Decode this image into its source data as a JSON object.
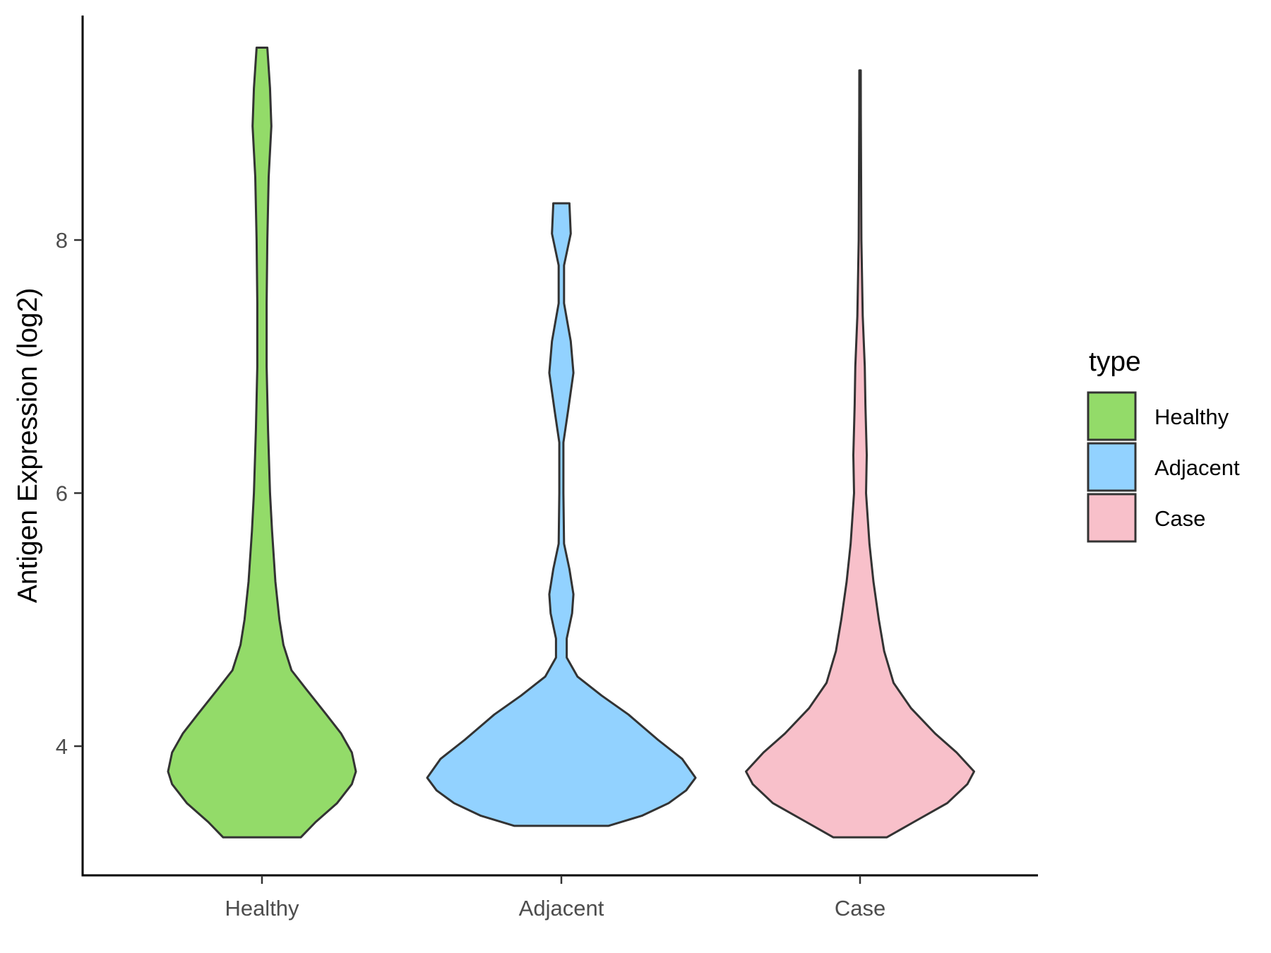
{
  "chart_data": {
    "type": "violin",
    "title": "",
    "xlabel": "",
    "ylabel": "Antigen Expression (log2)",
    "categories": [
      "Healthy",
      "Adjacent",
      "Case"
    ],
    "yticks": [
      4,
      6,
      8
    ],
    "ylim": [
      3.0,
      9.8
    ],
    "grid": false,
    "legend": {
      "title": "type",
      "placement": "right",
      "entries": [
        {
          "label": "Healthy",
          "color": "#93DB69"
        },
        {
          "label": "Adjacent",
          "color": "#92D2FF"
        },
        {
          "label": "Case",
          "color": "#F8C0CA"
        }
      ]
    },
    "series": [
      {
        "name": "Healthy",
        "color": "#93DB69",
        "ymin": 3.28,
        "ymax": 9.52,
        "density": [
          [
            3.28,
            0.29
          ],
          [
            3.4,
            0.4
          ],
          [
            3.55,
            0.56
          ],
          [
            3.7,
            0.67
          ],
          [
            3.8,
            0.7
          ],
          [
            3.95,
            0.67
          ],
          [
            4.1,
            0.59
          ],
          [
            4.25,
            0.48
          ],
          [
            4.45,
            0.33
          ],
          [
            4.6,
            0.22
          ],
          [
            4.8,
            0.16
          ],
          [
            5.0,
            0.13
          ],
          [
            5.3,
            0.1
          ],
          [
            5.7,
            0.075
          ],
          [
            6.0,
            0.06
          ],
          [
            6.5,
            0.045
          ],
          [
            7.0,
            0.035
          ],
          [
            7.5,
            0.035
          ],
          [
            8.0,
            0.04
          ],
          [
            8.5,
            0.05
          ],
          [
            8.9,
            0.07
          ],
          [
            9.2,
            0.06
          ],
          [
            9.52,
            0.04
          ]
        ]
      },
      {
        "name": "Adjacent",
        "color": "#92D2FF",
        "ymin": 3.37,
        "ymax": 8.29,
        "density": [
          [
            3.37,
            0.35
          ],
          [
            3.45,
            0.6
          ],
          [
            3.55,
            0.8
          ],
          [
            3.65,
            0.93
          ],
          [
            3.75,
            1.0
          ],
          [
            3.9,
            0.9
          ],
          [
            4.05,
            0.72
          ],
          [
            4.25,
            0.5
          ],
          [
            4.4,
            0.3
          ],
          [
            4.55,
            0.12
          ],
          [
            4.7,
            0.04
          ],
          [
            4.85,
            0.04
          ],
          [
            5.05,
            0.08
          ],
          [
            5.2,
            0.09
          ],
          [
            5.4,
            0.06
          ],
          [
            5.6,
            0.02
          ],
          [
            6.0,
            0.015
          ],
          [
            6.4,
            0.015
          ],
          [
            6.65,
            0.05
          ],
          [
            6.95,
            0.09
          ],
          [
            7.2,
            0.07
          ],
          [
            7.5,
            0.02
          ],
          [
            7.8,
            0.02
          ],
          [
            8.05,
            0.07
          ],
          [
            8.29,
            0.06
          ]
        ]
      },
      {
        "name": "Case",
        "color": "#F8C0CA",
        "ymin": 3.28,
        "ymax": 9.34,
        "density": [
          [
            3.28,
            0.2
          ],
          [
            3.4,
            0.4
          ],
          [
            3.55,
            0.65
          ],
          [
            3.7,
            0.8
          ],
          [
            3.8,
            0.85
          ],
          [
            3.95,
            0.72
          ],
          [
            4.1,
            0.56
          ],
          [
            4.3,
            0.38
          ],
          [
            4.5,
            0.25
          ],
          [
            4.75,
            0.18
          ],
          [
            5.0,
            0.14
          ],
          [
            5.3,
            0.1
          ],
          [
            5.6,
            0.07
          ],
          [
            6.0,
            0.045
          ],
          [
            6.3,
            0.05
          ],
          [
            6.7,
            0.04
          ],
          [
            7.0,
            0.035
          ],
          [
            7.4,
            0.02
          ],
          [
            8.0,
            0.01
          ],
          [
            8.5,
            0.008
          ],
          [
            9.0,
            0.006
          ],
          [
            9.34,
            0.005
          ]
        ]
      }
    ]
  }
}
